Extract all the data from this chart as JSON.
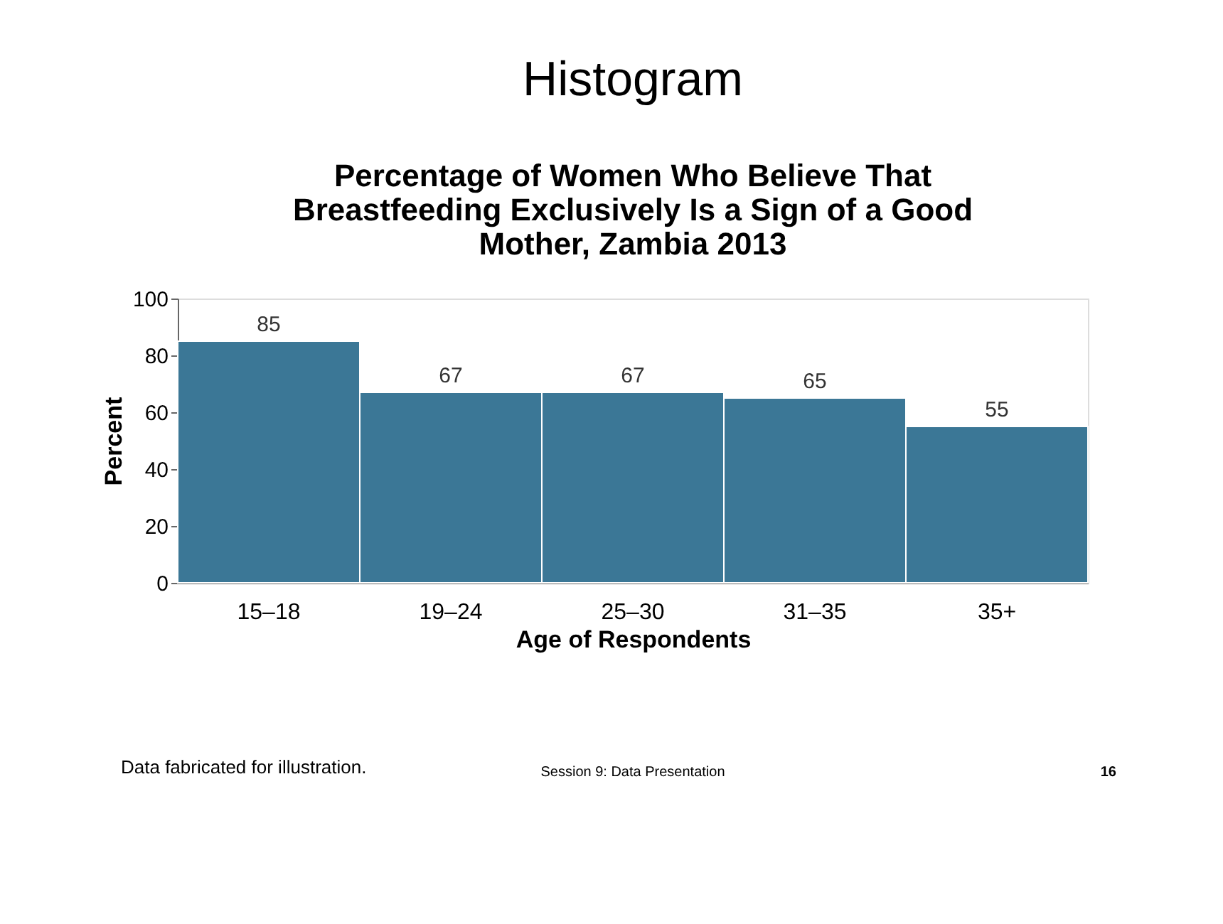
{
  "chart_data": {
    "type": "bar",
    "title": "Histogram",
    "subtitle": "Percentage of Women Who Believe That Breastfeeding Exclusively Is a Sign of a Good Mother, Zambia 2013",
    "xlabel": "Age of Respondents",
    "ylabel": "Percent",
    "categories": [
      "15–18",
      "19–24",
      "25–30",
      "31–35",
      "35+"
    ],
    "values": [
      85,
      67,
      67,
      65,
      55
    ],
    "color": "#3b7796",
    "ylim": [
      0,
      100
    ],
    "yticks": [
      0,
      20,
      40,
      60,
      80,
      100
    ],
    "grid": false,
    "data_labels": true,
    "annotations": [
      "Data fabricated for illustration.",
      "Session 9: Data Presentation",
      "16"
    ]
  }
}
